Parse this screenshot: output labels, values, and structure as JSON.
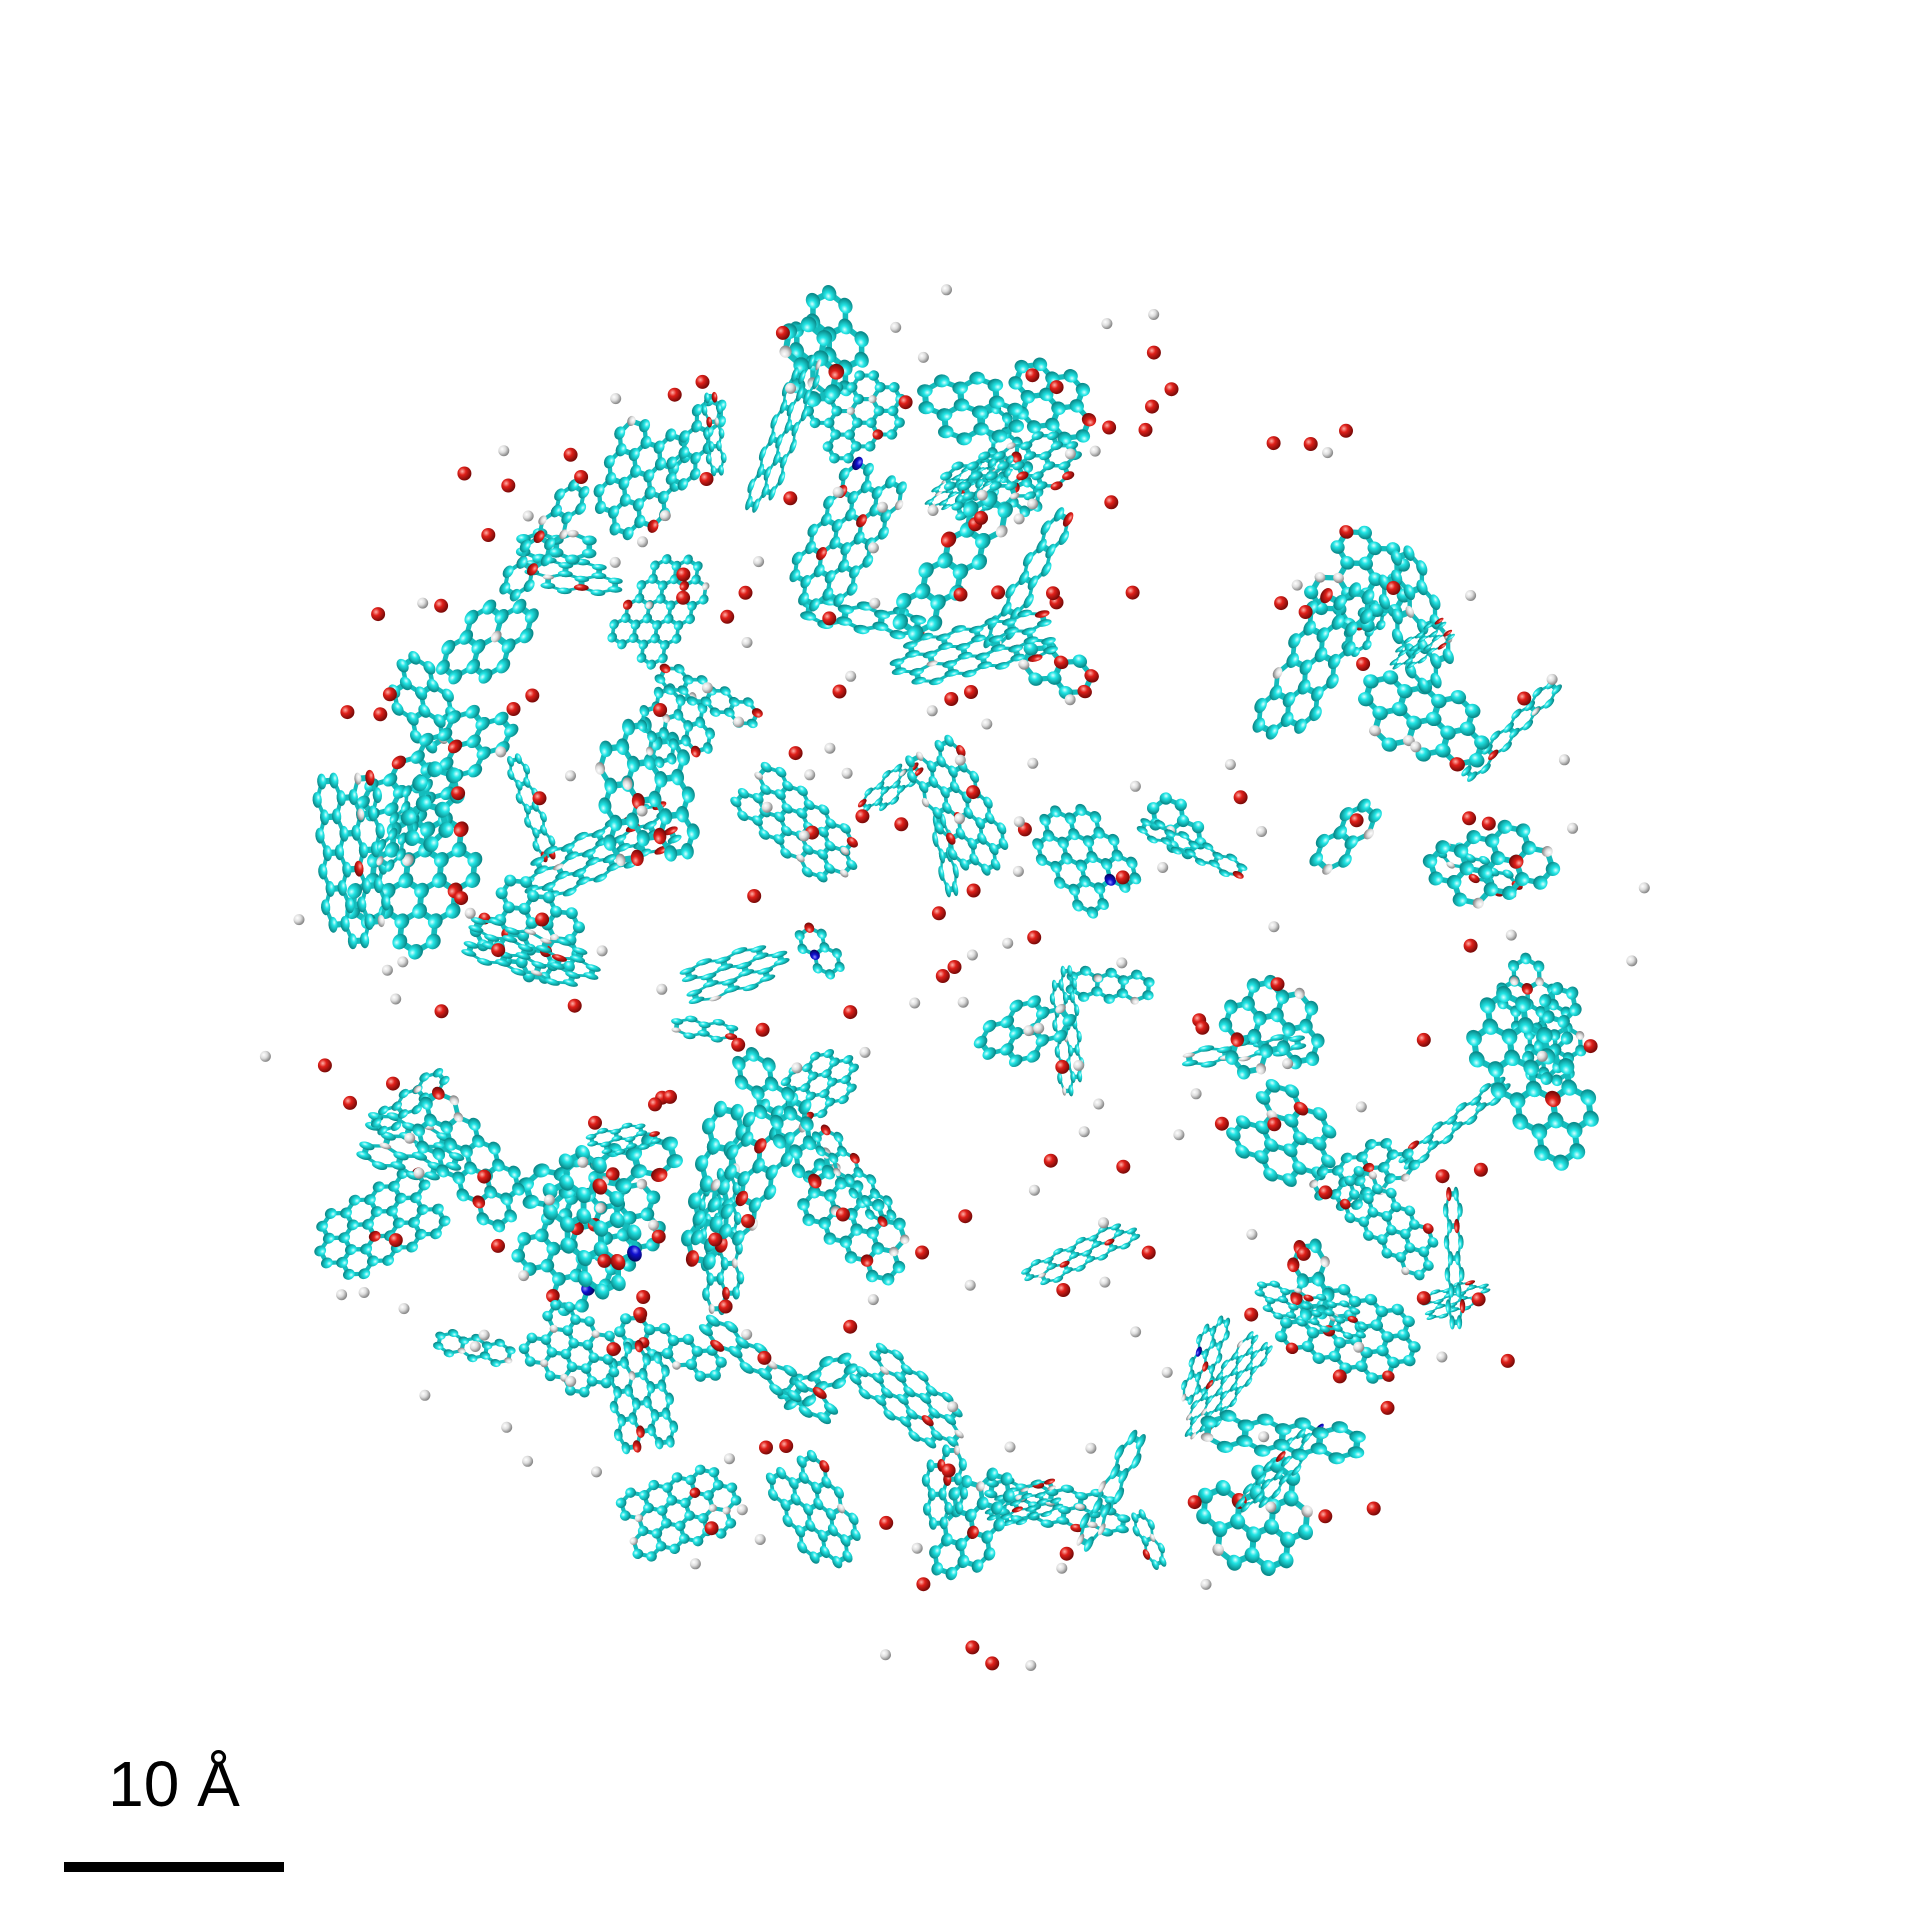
{
  "scale_bar": {
    "label": "10 Å"
  }
}
